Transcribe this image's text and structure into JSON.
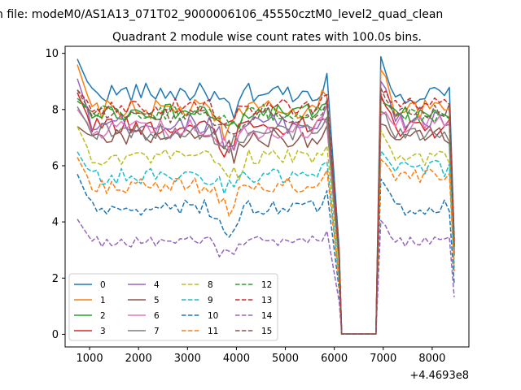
{
  "chart_data": {
    "type": "line",
    "suptitle": "n file: modeM0/AS1A13_071T02_9000006106_45550cztM0_level2_quad_clean",
    "title": "Quadrant 2 module wise count rates with 100.0s bins.",
    "xlabel": "",
    "ylabel": "",
    "offset_label": "+4.4693e8",
    "xlim": [
      500,
      8750
    ],
    "ylim": [
      -0.45,
      10.25
    ],
    "xticks": [
      1000,
      2000,
      3000,
      4000,
      5000,
      6000,
      7000,
      8000
    ],
    "xtick_labels": [
      "1000",
      "2000",
      "3000",
      "4000",
      "5000",
      "6000",
      "7000",
      "8000"
    ],
    "yticks": [
      0,
      2,
      4,
      6,
      8,
      10
    ],
    "ytick_labels": [
      "0",
      "2",
      "4",
      "6",
      "8",
      "10"
    ],
    "x_segments": {
      "part1": {
        "start": 750,
        "step": 100,
        "count": 52
      },
      "gap": [
        6150,
        6250,
        6350,
        6450,
        6550,
        6650,
        6750,
        6850
      ],
      "part2": {
        "start": 6950,
        "step": 100,
        "count": 15
      }
    },
    "legend": {
      "location": "lower-left",
      "columns": 4
    },
    "series": [
      {
        "name": "0",
        "color": "#1f77b4",
        "dash": "solid",
        "base": 8.6,
        "start": 9.8,
        "end": 8.5,
        "amp": 0.35,
        "dip": 0.6
      },
      {
        "name": "1",
        "color": "#ff7f0e",
        "dash": "solid",
        "base": 8.0,
        "start": 9.6,
        "end": 8.0,
        "amp": 0.35,
        "dip": 0.7
      },
      {
        "name": "2",
        "color": "#2ca02c",
        "dash": "solid",
        "base": 7.9,
        "start": 8.4,
        "end": 7.8,
        "amp": 0.3,
        "dip": 0.6
      },
      {
        "name": "3",
        "color": "#d62728",
        "dash": "solid",
        "base": 7.4,
        "start": 8.6,
        "end": 7.3,
        "amp": 0.35,
        "dip": 0.8
      },
      {
        "name": "4",
        "color": "#9467bd",
        "dash": "solid",
        "base": 7.5,
        "start": 9.1,
        "end": 7.6,
        "amp": 0.35,
        "dip": 0.7
      },
      {
        "name": "5",
        "color": "#8c564b",
        "dash": "solid",
        "base": 7.0,
        "start": 7.4,
        "end": 7.0,
        "amp": 0.35,
        "dip": 0.8
      },
      {
        "name": "6",
        "color": "#e377c2",
        "dash": "solid",
        "base": 7.3,
        "start": 8.0,
        "end": 7.5,
        "amp": 0.35,
        "dip": 0.7
      },
      {
        "name": "7",
        "color": "#7f7f7f",
        "dash": "solid",
        "base": 7.2,
        "start": 8.1,
        "end": 7.1,
        "amp": 0.3,
        "dip": 0.7
      },
      {
        "name": "8",
        "color": "#bcbd22",
        "dash": "dashed",
        "base": 6.3,
        "start": 7.4,
        "end": 6.3,
        "amp": 0.3,
        "dip": 0.8
      },
      {
        "name": "9",
        "color": "#17becf",
        "dash": "dashed",
        "base": 5.6,
        "start": 6.5,
        "end": 5.9,
        "amp": 0.3,
        "dip": 0.6
      },
      {
        "name": "10",
        "color": "#1f77b4",
        "dash": "dashed",
        "base": 4.5,
        "start": 5.7,
        "end": 4.5,
        "amp": 0.3,
        "dip": 0.7
      },
      {
        "name": "11",
        "color": "#ff7f0e",
        "dash": "dashed",
        "base": 5.3,
        "start": 6.3,
        "end": 5.6,
        "amp": 0.3,
        "dip": 0.9
      },
      {
        "name": "12",
        "color": "#2ca02c",
        "dash": "dashed",
        "base": 7.9,
        "start": 8.3,
        "end": 7.8,
        "amp": 0.3,
        "dip": 0.6
      },
      {
        "name": "13",
        "color": "#d62728",
        "dash": "dashed",
        "base": 8.1,
        "start": 8.7,
        "end": 8.2,
        "amp": 0.3,
        "dip": 0.6
      },
      {
        "name": "14",
        "color": "#9467bd",
        "dash": "dashed",
        "base": 3.3,
        "start": 4.1,
        "end": 3.3,
        "amp": 0.2,
        "dip": 0.5
      },
      {
        "name": "15",
        "color": "#8c564b",
        "dash": "dashed",
        "base": 7.8,
        "start": 8.7,
        "end": 7.9,
        "amp": 0.3,
        "dip": 0.6
      }
    ]
  }
}
